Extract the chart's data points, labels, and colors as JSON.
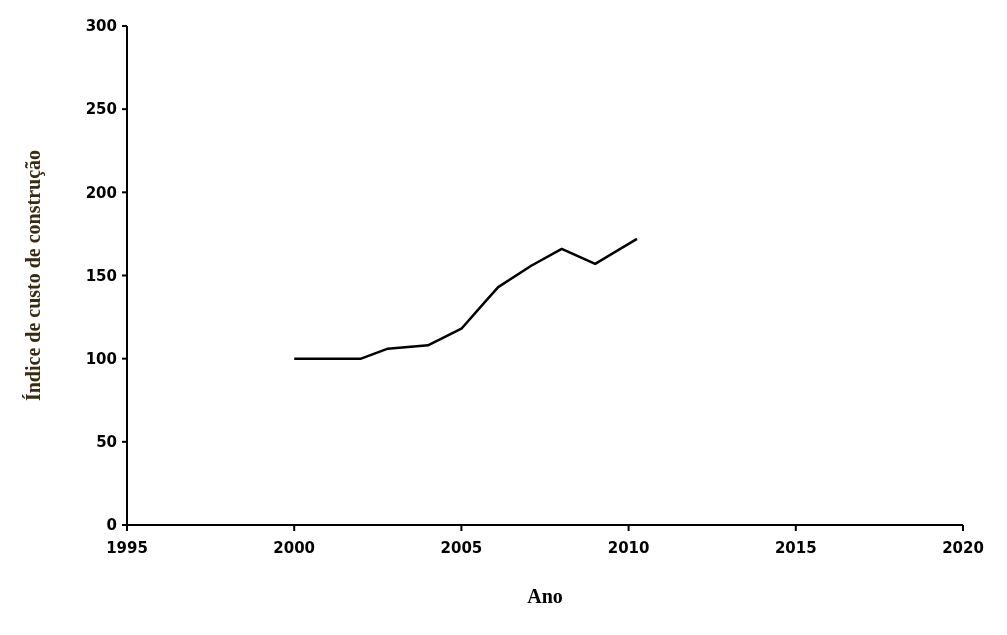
{
  "chart_data": {
    "type": "line",
    "xlabel": "Ano",
    "ylabel": "Índice de custo de construção",
    "x": [
      2000,
      2002,
      2002.8,
      2004,
      2005,
      2005.7,
      2006.1,
      2007.1,
      2008,
      2009,
      2010.25
    ],
    "series": [
      {
        "color": "#000000",
        "values": [
          100,
          100,
          106,
          108,
          118,
          134,
          143,
          156,
          166,
          157,
          172
        ]
      }
    ],
    "xlim": [
      1995,
      2020
    ],
    "xticks": [
      1995,
      2000,
      2005,
      2010,
      2015,
      2020
    ],
    "ylim": [
      0,
      300
    ],
    "yticks": [
      0,
      50,
      100,
      150,
      200,
      250,
      300
    ],
    "grid": false,
    "marker": "none",
    "line_style": "solid"
  }
}
